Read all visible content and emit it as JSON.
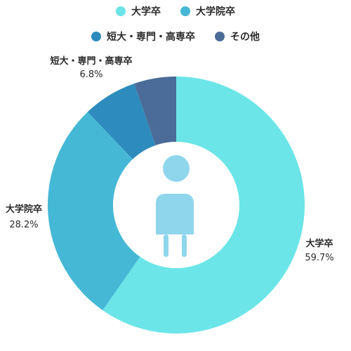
{
  "chart_data": {
    "type": "pie",
    "variant": "donut",
    "title": "",
    "categories": [
      "大学卒",
      "大学院卒",
      "短大・専門・高専卒",
      "その他"
    ],
    "values": [
      59.7,
      28.2,
      6.8,
      5.3
    ],
    "value_labels": [
      "59.7%",
      "28.2%",
      "6.8%",
      ""
    ],
    "colors": [
      "#6be5e8",
      "#45b8d6",
      "#2d8bbd",
      "#4b6c98"
    ],
    "legend_placement": "top",
    "center_icon": "person-icon",
    "center_icon_color": "#8fd6ec"
  }
}
